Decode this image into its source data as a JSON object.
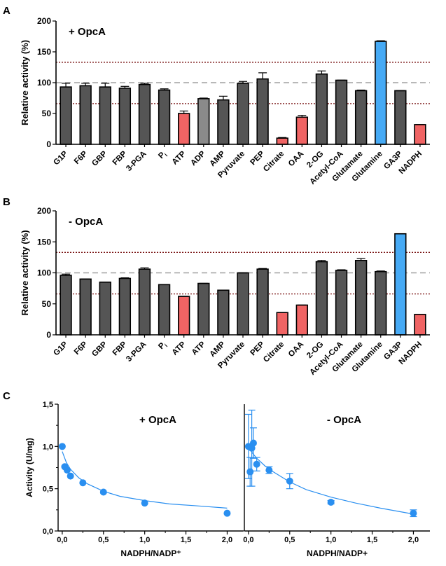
{
  "colors": {
    "dark": "#555555",
    "light": "#8a8a8a",
    "red": "#f06464",
    "blue": "#46aaf5",
    "point": "#2a8ff0",
    "fit": "#2a8ff0",
    "grey_ref": "#a0a0a0",
    "red_ref": "#7a1414"
  },
  "chart_data": [
    {
      "panel": "A",
      "type": "bar",
      "annotation": "+ OpcA",
      "ylabel": "Relative activity (%)",
      "ylim": [
        0,
        200
      ],
      "yticks": [
        "0",
        "50",
        "100",
        "150",
        "200"
      ],
      "ref_lines": [
        133,
        100,
        66
      ],
      "categories": [
        "G1P",
        "F6P",
        "GBP",
        "FBP",
        "3-PGA",
        "Pi",
        "ATP",
        "ADP",
        "AMP",
        "Pyruvate",
        "PEP",
        "Citrate",
        "OAA",
        "2-OG",
        "Acetyl-CoA",
        "Glutamate",
        "Glutamine",
        "GA3P",
        "NADPH"
      ],
      "values": [
        93,
        95,
        93,
        91,
        97,
        88,
        50,
        74,
        72,
        99,
        106,
        10,
        44,
        114,
        104,
        87,
        167,
        87,
        32
      ],
      "errors": [
        6,
        4,
        6,
        3,
        2,
        2,
        4,
        1,
        6,
        3,
        10,
        1,
        3,
        5,
        0,
        1,
        1,
        0,
        0
      ],
      "colors": [
        "dark",
        "dark",
        "dark",
        "dark",
        "dark",
        "dark",
        "red",
        "light",
        "dark",
        "dark",
        "dark",
        "red",
        "red",
        "dark",
        "dark",
        "dark",
        "blue",
        "dark",
        "red"
      ]
    },
    {
      "panel": "B",
      "type": "bar",
      "annotation": "- OpcA",
      "ylabel": "Relative activity (%)",
      "ylim": [
        0,
        200
      ],
      "yticks": [
        "0",
        "50",
        "100",
        "150",
        "200"
      ],
      "ref_lines": [
        133,
        100,
        66
      ],
      "categories": [
        "G1P",
        "F6P",
        "GBP",
        "FBP",
        "3-PGA",
        "Pi",
        "ATP",
        "ATP",
        "AMP",
        "Pyruvate",
        "PEP",
        "Citrate",
        "OAA",
        "2-OG",
        "Acetyl-CoA",
        "Glutamate",
        "Glutamine",
        "GA3P",
        "NADPH"
      ],
      "values": [
        96,
        90,
        85,
        91,
        106,
        81,
        62,
        83,
        72,
        100,
        106,
        36,
        48,
        118,
        104,
        120,
        102,
        163,
        33
      ],
      "errors": [
        2,
        0,
        0,
        1,
        2,
        0,
        0,
        0,
        0,
        0,
        1,
        0,
        0,
        2,
        1,
        3,
        1,
        0,
        0
      ],
      "colors": [
        "dark",
        "dark",
        "dark",
        "dark",
        "dark",
        "dark",
        "red",
        "dark",
        "dark",
        "dark",
        "dark",
        "red",
        "red",
        "dark",
        "dark",
        "dark",
        "dark",
        "blue",
        "red"
      ]
    },
    {
      "panel": "C-left",
      "type": "scatter",
      "annotation": "+ OpcA",
      "xlabel": "NADPH/NADP⁺",
      "ylabel": "Activity (U/mg)",
      "xlim": [
        -0.05,
        2.2
      ],
      "ylim": [
        0,
        1.5
      ],
      "xticks": [
        "0,0",
        "0,5",
        "1,0",
        "1,5",
        "2,0"
      ],
      "yticks": [
        "0,0",
        "0,5",
        "1,0",
        "1,5"
      ],
      "x": [
        0.0,
        0.03,
        0.06,
        0.1,
        0.25,
        0.5,
        1.0,
        2.0
      ],
      "y": [
        1.0,
        0.76,
        0.72,
        0.65,
        0.57,
        0.46,
        0.33,
        0.21
      ],
      "errors": [
        0,
        0,
        0,
        0,
        0,
        0,
        0,
        0
      ],
      "fit": {
        "x": [
          0.0,
          0.05,
          0.1,
          0.2,
          0.3,
          0.5,
          0.7,
          1.0,
          1.3,
          1.6,
          2.0
        ],
        "y": [
          0.94,
          0.81,
          0.73,
          0.63,
          0.56,
          0.47,
          0.41,
          0.36,
          0.32,
          0.3,
          0.27
        ]
      }
    },
    {
      "panel": "C-right",
      "type": "scatter",
      "annotation": "- OpcA",
      "xlabel": "NADPH/NADP+",
      "ylabel": "",
      "xlim": [
        -0.05,
        2.2
      ],
      "ylim": [
        0,
        1.5
      ],
      "xticks": [
        "0,0",
        "0,5",
        "1,0",
        "1,5",
        "2,0"
      ],
      "yticks": [],
      "x": [
        0.0,
        0.02,
        0.04,
        0.06,
        0.1,
        0.25,
        0.5,
        1.0,
        2.0
      ],
      "y": [
        1.0,
        0.7,
        0.98,
        1.04,
        0.79,
        0.72,
        0.59,
        0.34,
        0.21
      ],
      "errors": [
        0.38,
        0.17,
        0.45,
        0.18,
        0.08,
        0.04,
        0.09,
        0.02,
        0.04
      ],
      "fit": {
        "x": [
          0.0,
          0.05,
          0.1,
          0.2,
          0.3,
          0.5,
          0.7,
          1.0,
          1.3,
          1.6,
          2.0
        ],
        "y": [
          0.99,
          0.92,
          0.86,
          0.77,
          0.7,
          0.58,
          0.49,
          0.4,
          0.33,
          0.27,
          0.2
        ]
      }
    }
  ],
  "labels": {
    "a": "A",
    "b": "B",
    "c": "C",
    "pi_letter": "P",
    "pi_sub": "i"
  }
}
